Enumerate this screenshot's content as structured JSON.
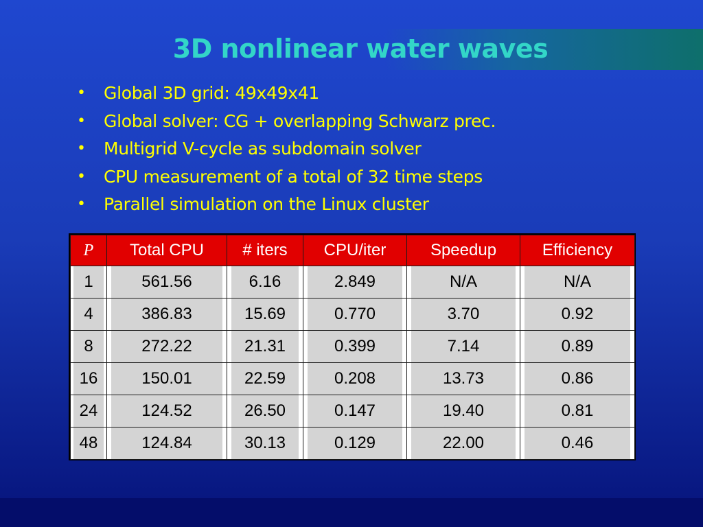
{
  "slide": {
    "title": "3D nonlinear water waves",
    "bullets": [
      "Global 3D grid: 49x49x41",
      "Global solver: CG + overlapping Schwarz prec.",
      "Multigrid V-cycle as subdomain solver",
      "CPU measurement of a total of 32 time steps",
      "Parallel simulation on the Linux cluster"
    ],
    "bullet_symbol": "•"
  },
  "table": {
    "columns": [
      "P",
      "Total CPU",
      "# iters",
      "CPU/iter",
      "Speedup",
      "Efficiency"
    ],
    "rows": [
      [
        "1",
        "561.56",
        "6.16",
        "2.849",
        "N/A",
        "N/A"
      ],
      [
        "4",
        "386.83",
        "15.69",
        "0.770",
        "3.70",
        "0.92"
      ],
      [
        "8",
        "272.22",
        "21.31",
        "0.399",
        "7.14",
        "0.89"
      ],
      [
        "16",
        "150.01",
        "22.59",
        "0.208",
        "13.73",
        "0.86"
      ],
      [
        "24",
        "124.52",
        "26.50",
        "0.147",
        "19.40",
        "0.81"
      ],
      [
        "48",
        "124.84",
        "30.13",
        "0.129",
        "22.00",
        "0.46"
      ]
    ]
  },
  "colors": {
    "title": "#33d6c8",
    "bullet_text": "#ffff00",
    "table_header": "#e10000",
    "table_cell": "#d4d4d4",
    "background": "#1f47cf"
  }
}
